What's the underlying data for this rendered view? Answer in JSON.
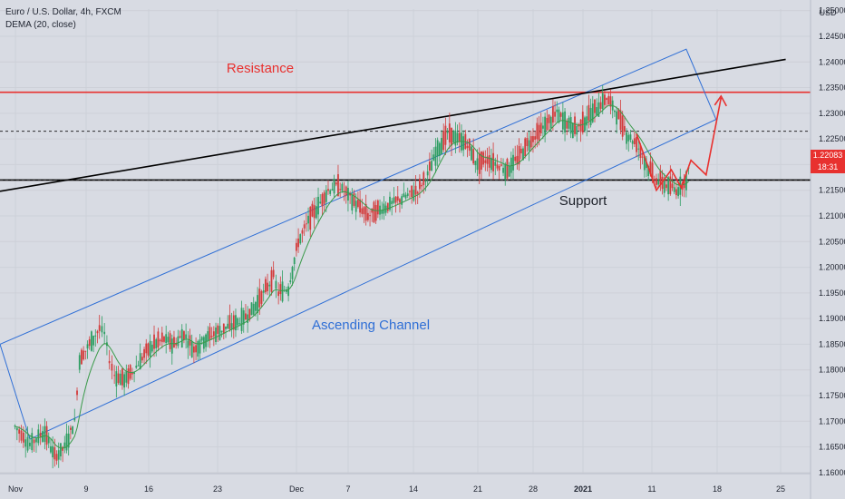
{
  "header": {
    "symbol_title": "Euro / U.S. Dollar, 4h, FXCM",
    "indicator": "DEMA (20, close)"
  },
  "price_scale": {
    "currency": "USD",
    "last_price": "1.22083",
    "countdown": "18:31"
  },
  "annotations": {
    "resistance": "Resistance",
    "support": "Support",
    "channel": "Ascending Channel"
  },
  "colors": {
    "background": "#d8dbe3",
    "resistance": "#e8312f",
    "support": "#000000",
    "channel": "#2f6fd6",
    "dema": "#3a9a4a",
    "candle_up": "#2e9e63",
    "candle_down": "#d33b3b",
    "trendline": "#000000"
  },
  "chart_data": {
    "type": "candlestick",
    "ylim": [
      1.1598,
      1.2503
    ],
    "y_ticks": [
      "1.16000",
      "1.16500",
      "1.17000",
      "1.17500",
      "1.18000",
      "1.18500",
      "1.19000",
      "1.19500",
      "1.20000",
      "1.20500",
      "1.21000",
      "1.21500",
      "1.22000",
      "1.22500",
      "1.23000",
      "1.23500",
      "1.24000",
      "1.24500",
      "1.25000"
    ],
    "x_tick_labels": [
      "Nov",
      "9",
      "16",
      "23",
      "Dec",
      "7",
      "14",
      "21",
      "28",
      "2021",
      "11",
      "18",
      "25"
    ],
    "horizontal_levels": [
      {
        "name": "Resistance",
        "value": 1.2341
      },
      {
        "name": "Support",
        "value": 1.217
      },
      {
        "name": "dotted level upper",
        "value": 1.2265
      },
      {
        "name": "dotted level lower",
        "value": 1.217
      }
    ],
    "price_path": [
      [
        0,
        1.169
      ],
      [
        3,
        1.1655
      ],
      [
        6,
        1.168
      ],
      [
        8,
        1.163
      ],
      [
        10,
        1.165
      ],
      [
        12,
        1.17
      ],
      [
        13,
        1.182
      ],
      [
        15,
        1.185
      ],
      [
        17,
        1.188
      ],
      [
        18,
        1.187
      ],
      [
        19,
        1.182
      ],
      [
        20,
        1.179
      ],
      [
        22,
        1.178
      ],
      [
        24,
        1.18
      ],
      [
        26,
        1.183
      ],
      [
        28,
        1.185
      ],
      [
        30,
        1.186
      ],
      [
        32,
        1.185
      ],
      [
        34,
        1.187
      ],
      [
        36,
        1.184
      ],
      [
        38,
        1.186
      ],
      [
        40,
        1.187
      ],
      [
        42,
        1.188
      ],
      [
        44,
        1.189
      ],
      [
        46,
        1.19
      ],
      [
        48,
        1.192
      ],
      [
        50,
        1.195
      ],
      [
        52,
        1.198
      ],
      [
        53,
        1.195
      ],
      [
        55,
        1.196
      ],
      [
        57,
        1.205
      ],
      [
        59,
        1.209
      ],
      [
        61,
        1.212
      ],
      [
        63,
        1.215
      ],
      [
        65,
        1.216
      ],
      [
        67,
        1.214
      ],
      [
        69,
        1.212
      ],
      [
        71,
        1.21
      ],
      [
        73,
        1.211
      ],
      [
        75,
        1.212
      ],
      [
        77,
        1.213
      ],
      [
        79,
        1.214
      ],
      [
        81,
        1.215
      ],
      [
        83,
        1.218
      ],
      [
        85,
        1.223
      ],
      [
        87,
        1.226
      ],
      [
        89,
        1.225
      ],
      [
        91,
        1.224
      ],
      [
        93,
        1.22
      ],
      [
        95,
        1.221
      ],
      [
        97,
        1.22
      ],
      [
        99,
        1.219
      ],
      [
        101,
        1.221
      ],
      [
        103,
        1.224
      ],
      [
        105,
        1.226
      ],
      [
        107,
        1.228
      ],
      [
        109,
        1.23
      ],
      [
        111,
        1.228
      ],
      [
        113,
        1.227
      ],
      [
        115,
        1.229
      ],
      [
        117,
        1.231
      ],
      [
        119,
        1.233
      ],
      [
        121,
        1.23
      ],
      [
        123,
        1.226
      ],
      [
        125,
        1.224
      ],
      [
        127,
        1.22
      ],
      [
        129,
        1.217
      ],
      [
        131,
        1.216
      ],
      [
        133,
        1.215
      ],
      [
        135,
        1.217
      ],
      [
        136,
        1.2208
      ]
    ],
    "projection_path": [
      [
        136,
        1.2208
      ],
      [
        139,
        1.218
      ],
      [
        142,
        1.233
      ]
    ],
    "zigzag_path": [
      [
        125,
        1.226
      ],
      [
        129,
        1.215
      ],
      [
        132,
        1.219
      ],
      [
        134,
        1.2155
      ],
      [
        136,
        1.221
      ]
    ],
    "trendline": [
      [
        -3,
        1.2148
      ],
      [
        155,
        1.2405
      ]
    ],
    "channel_lower": [
      [
        3,
        1.1665
      ],
      [
        141,
        1.2288
      ]
    ],
    "channel_upper": [
      [
        -3,
        1.185
      ],
      [
        135,
        1.2425
      ]
    ],
    "x_range": [
      -3,
      160
    ]
  }
}
